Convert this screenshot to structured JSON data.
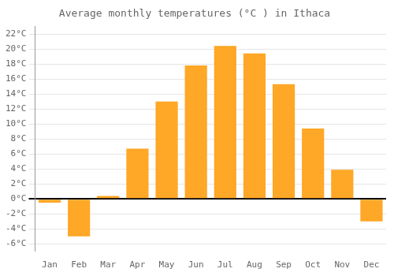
{
  "chart_data": {
    "type": "bar",
    "title": "Average monthly temperatures (°C ) in Ithaca",
    "categories": [
      "Jan",
      "Feb",
      "Mar",
      "Apr",
      "May",
      "Jun",
      "Jul",
      "Aug",
      "Sep",
      "Oct",
      "Nov",
      "Dec"
    ],
    "values": [
      -0.5,
      -5.0,
      0.4,
      6.7,
      13.0,
      17.8,
      20.4,
      19.4,
      15.3,
      9.4,
      3.9,
      -3.0
    ],
    "color": "#FFA726",
    "ylim": [
      -7,
      23
    ],
    "yticks": [
      {
        "value": -6,
        "label": "-6°C"
      },
      {
        "value": -4,
        "label": "-4°C"
      },
      {
        "value": -2,
        "label": "-2°C"
      },
      {
        "value": 0,
        "label": "0°C"
      },
      {
        "value": 2,
        "label": "2°C"
      },
      {
        "value": 4,
        "label": "4°C"
      },
      {
        "value": 6,
        "label": "6°C"
      },
      {
        "value": 8,
        "label": "8°C"
      },
      {
        "value": 10,
        "label": "10°C"
      },
      {
        "value": 12,
        "label": "12°C"
      },
      {
        "value": 14,
        "label": "14°C"
      },
      {
        "value": 16,
        "label": "16°C"
      },
      {
        "value": 18,
        "label": "18°C"
      },
      {
        "value": 20,
        "label": "20°C"
      },
      {
        "value": 22,
        "label": "22°C"
      }
    ],
    "grid": true
  }
}
